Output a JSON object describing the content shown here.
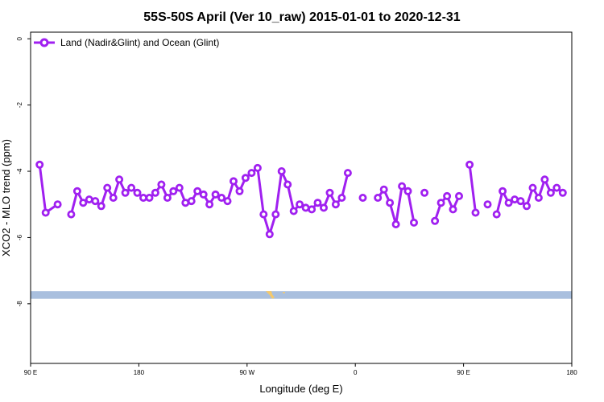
{
  "chart_data": {
    "type": "line",
    "title": "55S-50S April (Ver 10_raw)   2015-01-01 to 2020-12-31",
    "xlabel": "Longitude (deg E)",
    "ylabel": "XCO2 - MLO trend (ppm)",
    "x_tick_labels": [
      "90 E",
      "180",
      "90 W",
      "0",
      "90 E",
      "180"
    ],
    "y_tick_labels": [
      "0",
      "-2",
      "-4",
      "-6",
      "-8"
    ],
    "y_ticks": [
      0,
      -2,
      -4,
      -6,
      -8
    ],
    "ylim": [
      -9.8,
      0.2
    ],
    "xlim": [
      90,
      450
    ],
    "legend": {
      "position": "top-left",
      "entries": [
        "Land (Nadir&Glint) and Ocean (Glint)"
      ]
    },
    "series": [
      {
        "name": "Land (Nadir&Glint) and Ocean (Glint)",
        "color": "#a020f0",
        "points": [
          [
            96,
            -3.8
          ],
          [
            100,
            -5.25
          ],
          [
            108,
            -5.0
          ],
          null,
          [
            117,
            -5.3
          ],
          [
            121,
            -4.6
          ],
          [
            125,
            -4.95
          ],
          [
            129,
            -4.85
          ],
          [
            133,
            -4.9
          ],
          [
            137,
            -5.05
          ],
          [
            141,
            -4.5
          ],
          [
            145,
            -4.8
          ],
          [
            149,
            -4.25
          ],
          [
            153,
            -4.65
          ],
          [
            157,
            -4.5
          ],
          [
            161,
            -4.65
          ],
          [
            165,
            -4.8
          ],
          [
            169,
            -4.8
          ],
          [
            173,
            -4.65
          ],
          [
            177,
            -4.4
          ],
          [
            181,
            -4.8
          ],
          [
            185,
            -4.6
          ],
          [
            189,
            -4.5
          ],
          [
            193,
            -4.95
          ],
          [
            197,
            -4.9
          ],
          [
            201,
            -4.6
          ],
          [
            205,
            -4.7
          ],
          [
            209,
            -5.0
          ],
          [
            213,
            -4.7
          ],
          [
            217,
            -4.8
          ],
          [
            221,
            -4.9
          ],
          [
            225,
            -4.3
          ],
          [
            229,
            -4.6
          ],
          [
            233,
            -4.2
          ],
          [
            237,
            -4.05
          ],
          [
            241,
            -3.9
          ],
          [
            245,
            -5.3
          ],
          [
            249,
            -5.9
          ],
          [
            253,
            -5.3
          ],
          [
            257,
            -4.0
          ],
          [
            261,
            -4.4
          ],
          [
            265,
            -5.2
          ],
          [
            269,
            -5.0
          ],
          [
            273,
            -5.1
          ],
          [
            277,
            -5.15
          ],
          [
            281,
            -4.95
          ],
          [
            285,
            -5.1
          ],
          [
            289,
            -4.65
          ],
          [
            293,
            -5.0
          ],
          [
            297,
            -4.8
          ],
          [
            301,
            -4.05
          ],
          null,
          [
            311,
            -4.8
          ],
          null,
          [
            321,
            -4.8
          ],
          [
            325,
            -4.55
          ],
          [
            329,
            -4.95
          ],
          [
            333,
            -5.6
          ],
          [
            337,
            -4.45
          ],
          [
            341,
            -4.6
          ],
          [
            345,
            -5.55
          ],
          null,
          [
            352,
            -4.65
          ],
          null,
          [
            359,
            -5.5
          ],
          [
            363,
            -4.95
          ],
          [
            367,
            -4.75
          ],
          [
            371,
            -5.15
          ],
          [
            375,
            -4.75
          ],
          null,
          [
            382,
            -3.8
          ],
          [
            386,
            -5.25
          ],
          null,
          [
            394,
            -5.0
          ],
          null,
          [
            400,
            -5.3
          ],
          [
            404,
            -4.6
          ],
          [
            408,
            -4.95
          ],
          [
            412,
            -4.85
          ],
          [
            416,
            -4.9
          ],
          [
            420,
            -5.05
          ],
          [
            424,
            -4.5
          ],
          [
            428,
            -4.8
          ],
          [
            432,
            -4.25
          ],
          [
            436,
            -4.65
          ],
          [
            440,
            -4.5
          ],
          [
            444,
            -4.65
          ]
        ]
      }
    ],
    "map_strip": {
      "value_top": -7.62,
      "value_bottom": -7.85,
      "ocean_color": "#a9bfde",
      "land_color": "#f5c96b"
    }
  }
}
